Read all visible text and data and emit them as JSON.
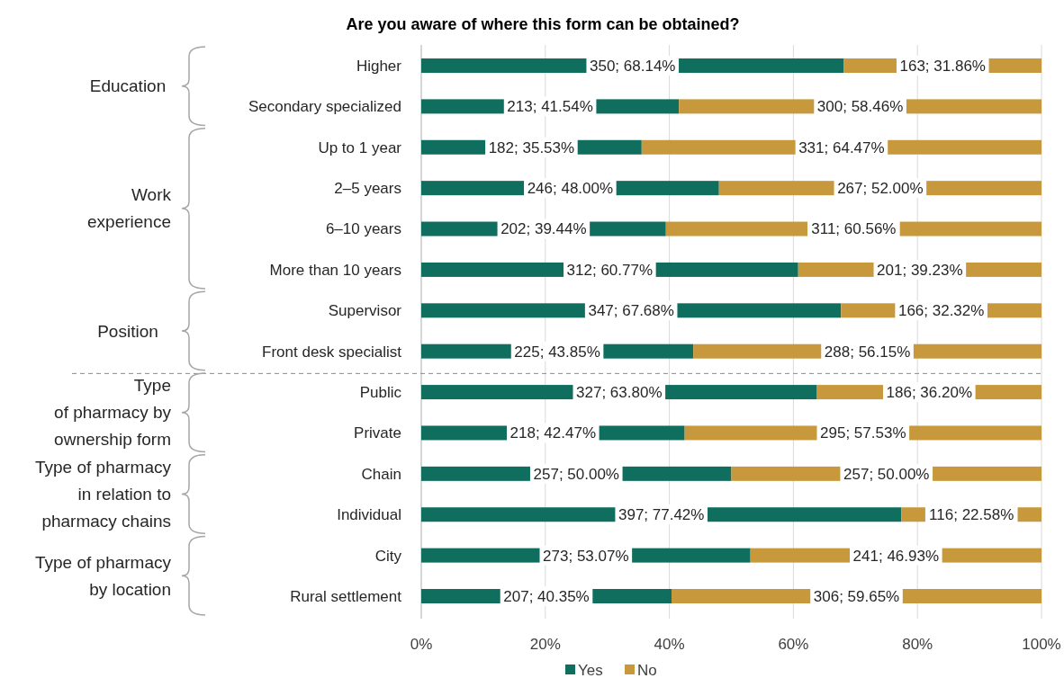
{
  "chart_data": {
    "type": "bar",
    "orientation": "horizontal",
    "stacked": true,
    "title": "Are you aware of where this form can be obtained?",
    "categories": [
      "Higher",
      "Secondary specialized",
      "Up to 1 year",
      "2–5 years",
      "6–10 years",
      "More than 10 years",
      "Supervisor",
      "Front desk specialist",
      "Public",
      "Private",
      "Chain",
      "Individual",
      "City",
      "Rural settlement"
    ],
    "series": [
      {
        "name": "Yes",
        "color": "#0f6e5e",
        "values": [
          68.14,
          41.54,
          35.53,
          48.0,
          39.44,
          60.77,
          67.68,
          43.85,
          63.8,
          42.47,
          50.0,
          77.42,
          53.07,
          40.35
        ],
        "value_labels": [
          "350; 68.14%",
          "213; 41.54%",
          "182; 35.53%",
          "246; 48.00%",
          "202; 39.44%",
          "312; 60.77%",
          "347; 67.68%",
          "225; 43.85%",
          "327; 63.80%",
          "218; 42.47%",
          "257; 50.00%",
          "397; 77.42%",
          "273; 53.07%",
          "207; 40.35%"
        ]
      },
      {
        "name": "No",
        "color": "#c8993c",
        "values": [
          31.86,
          58.46,
          64.47,
          52.0,
          60.56,
          39.23,
          32.32,
          56.15,
          36.2,
          57.53,
          50.0,
          22.58,
          46.93,
          59.65
        ],
        "value_labels": [
          "163; 31.86%",
          "300; 58.46%",
          "331; 64.47%",
          "267; 52.00%",
          "311; 60.56%",
          "201; 39.23%",
          "166; 32.32%",
          "288; 56.15%",
          "186; 36.20%",
          "295; 57.53%",
          "257; 50.00%",
          "116; 22.58%",
          "241; 46.93%",
          "306; 59.65%"
        ]
      }
    ],
    "xlim": [
      0,
      100
    ],
    "xticks": [
      {
        "value": 0,
        "label": "0%"
      },
      {
        "value": 20,
        "label": "20%"
      },
      {
        "value": 40,
        "label": "40%"
      },
      {
        "value": 60,
        "label": "60%"
      },
      {
        "value": 80,
        "label": "80%"
      },
      {
        "value": 100,
        "label": "100%"
      }
    ],
    "grid": "x",
    "legend": "bottom",
    "annotations": [
      "Education",
      "Work\nexperience",
      "Position",
      "Type\nof pharmacy by\nownership form",
      "Type of pharmacy\nin relation to\npharmacy chains",
      "Type of pharmacy\nby location"
    ]
  }
}
